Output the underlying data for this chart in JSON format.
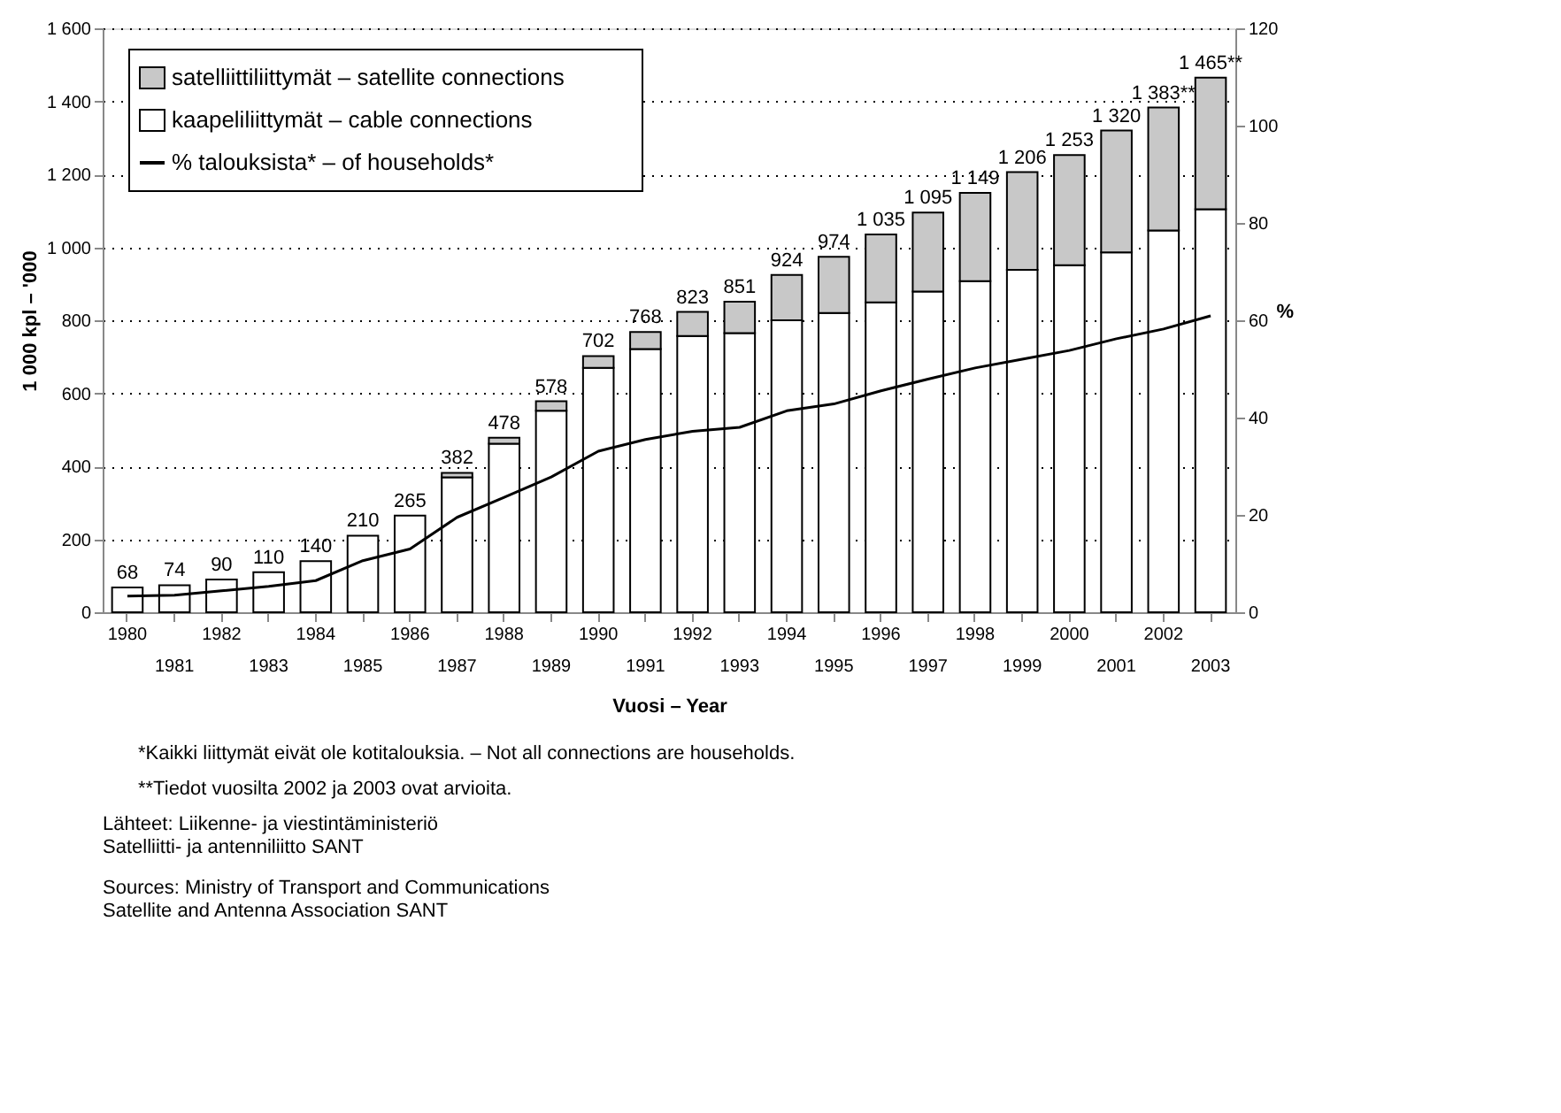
{
  "chart_data": {
    "type": "bar",
    "stacked": true,
    "xlabel": "Vuosi – Year",
    "ylabel": "1 000 kpl – '000",
    "y2label": "%",
    "categories": [
      "1980",
      "1981",
      "1982",
      "1983",
      "1984",
      "1985",
      "1986",
      "1987",
      "1988",
      "1989",
      "1990",
      "1991",
      "1992",
      "1993",
      "1994",
      "1995",
      "1996",
      "1997",
      "1998",
      "1999",
      "2000",
      "2001",
      "2002",
      "2003"
    ],
    "series": [
      {
        "name": "kaapeliliittymät – cable connections",
        "color": "#ffffff",
        "values": [
          68,
          74,
          90,
          110,
          140,
          210,
          265,
          370,
          462,
          552,
          670,
          721,
          757,
          765,
          800,
          820,
          849,
          879,
          907,
          938,
          951,
          986,
          1046,
          1104
        ]
      },
      {
        "name": "satelliittiliittymät – satellite connections",
        "color": "#c8c8c8",
        "values": [
          null,
          null,
          null,
          null,
          null,
          null,
          null,
          12,
          16,
          26,
          32,
          47,
          66,
          86,
          124,
          154,
          186,
          216,
          242,
          268,
          302,
          334,
          337,
          361
        ]
      },
      {
        "name": "% talouksista* – of households*",
        "color": "#000000",
        "type": "line",
        "axis": "y2",
        "values": [
          3.3,
          3.5,
          4.4,
          5.3,
          6.5,
          10.6,
          13,
          19.5,
          23.6,
          27.8,
          33.1,
          35.5,
          37.2,
          38,
          41.4,
          42.8,
          45.5,
          47.9,
          50.2,
          52,
          53.8,
          56.2,
          58.2,
          60.9
        ]
      }
    ],
    "totals": [
      "68",
      "74",
      "90",
      "110",
      "140",
      "210",
      "265",
      "382",
      "478",
      "578",
      "702",
      "768",
      "823",
      "851",
      "924",
      "974",
      "1 035",
      "1 095",
      "1 149",
      "1 206",
      "1 253",
      "1 320",
      "1 383**",
      "1 465**"
    ],
    "ylim": [
      0,
      1600
    ],
    "yticks": [
      0,
      200,
      400,
      600,
      800,
      {
        "value": 1000,
        "label": "1 000"
      },
      {
        "value": 1200,
        "label": "1 200"
      },
      {
        "value": 1400,
        "label": "1 400"
      },
      {
        "value": 1600,
        "label": "1 600"
      }
    ],
    "y2lim": [
      0,
      120
    ],
    "y2ticks": [
      0,
      20,
      40,
      60,
      80,
      100,
      120
    ],
    "grid": "y",
    "legend": "top left",
    "annotations": [
      "*Kaikki liittymät eivät ole kotitalouksia. – Not all connections are households.",
      "**Tiedot vuosilta 2002 ja 2003 ovat arvioita.",
      "Lähteet:  Liikenne- ja viestintäministeriö\n              Satelliitti- ja antenniliitto SANT",
      "Sources:  Ministry of Transport and Communications\n              Satellite and Antenna Association SANT"
    ]
  }
}
